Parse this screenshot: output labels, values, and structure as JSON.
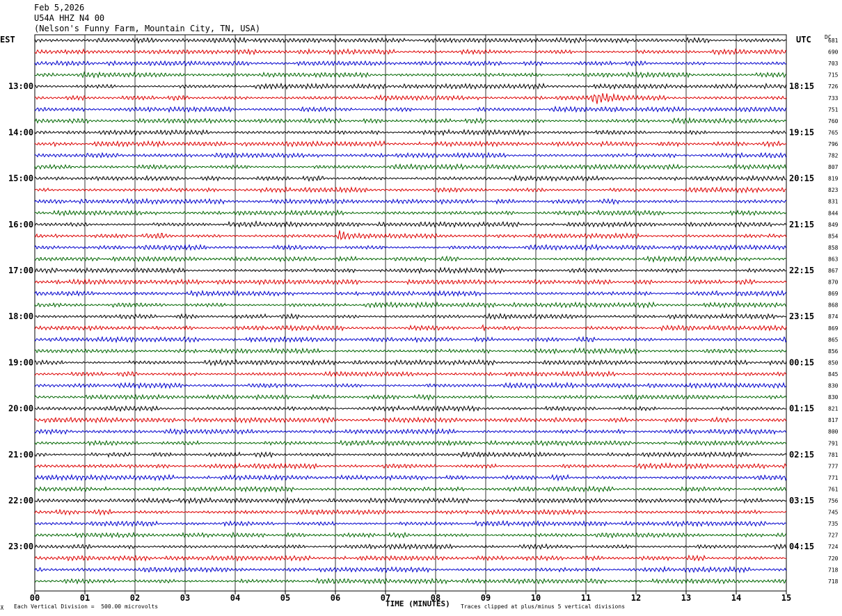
{
  "header": {
    "date": "Feb 5,2026",
    "station": "U54A HHZ N4 00",
    "location": "(Nelson's Funny Farm, Mountain City, TN, USA)"
  },
  "labels": {
    "left_tz": "EST",
    "right_tz": "UTC",
    "dc": "DC",
    "xlabel": "TIME (MINUTES)",
    "scale_note": "Each Vertical Division =  500.00 microvolts",
    "clip_note": "Traces clipped at plus/minus 5 vertical divisions"
  },
  "colors": {
    "trace_cycle": [
      "#000000",
      "#dd0000",
      "#0000cc",
      "#006600"
    ],
    "grid": "#000000"
  },
  "chart_data": {
    "type": "line",
    "description_kind": "helicorder",
    "x_ticks": [
      "00",
      "01",
      "02",
      "03",
      "04",
      "05",
      "06",
      "07",
      "08",
      "09",
      "10",
      "11",
      "12",
      "13",
      "14",
      "15"
    ],
    "xlim": [
      0,
      15
    ],
    "rows_per_hour": 4,
    "est_hour_labels": [
      "13:00",
      "14:00",
      "15:00",
      "16:00",
      "17:00",
      "18:00",
      "19:00",
      "20:00",
      "21:00",
      "22:00",
      "23:00"
    ],
    "utc_hour_labels": [
      "18:15",
      "19:15",
      "20:15",
      "21:15",
      "22:15",
      "23:15",
      "00:15",
      "01:15",
      "02:15",
      "03:15",
      "04:15"
    ],
    "dc_offsets": [
      681,
      690,
      703,
      715,
      726,
      733,
      751,
      760,
      765,
      796,
      782,
      807,
      819,
      823,
      831,
      844,
      849,
      854,
      858,
      863,
      867,
      870,
      869,
      868,
      874,
      869,
      865,
      856,
      850,
      845,
      830,
      830,
      821,
      817,
      800,
      791,
      781,
      777,
      771,
      761,
      756,
      745,
      735,
      727,
      724,
      720,
      718,
      718
    ],
    "events": [
      {
        "row": 5,
        "start_min": 11.0,
        "end_min": 12.4,
        "amplitude": 9
      },
      {
        "row": 16,
        "start_min": 4.3,
        "end_min": 5.0,
        "amplitude": 5
      },
      {
        "row": 17,
        "start_min": 2.4,
        "end_min": 2.9,
        "amplitude": 6
      },
      {
        "row": 17,
        "start_min": 6.0,
        "end_min": 6.6,
        "amplitude": 9
      },
      {
        "row": 25,
        "start_min": 8.9,
        "end_min": 9.1,
        "amplitude": 6
      }
    ]
  }
}
